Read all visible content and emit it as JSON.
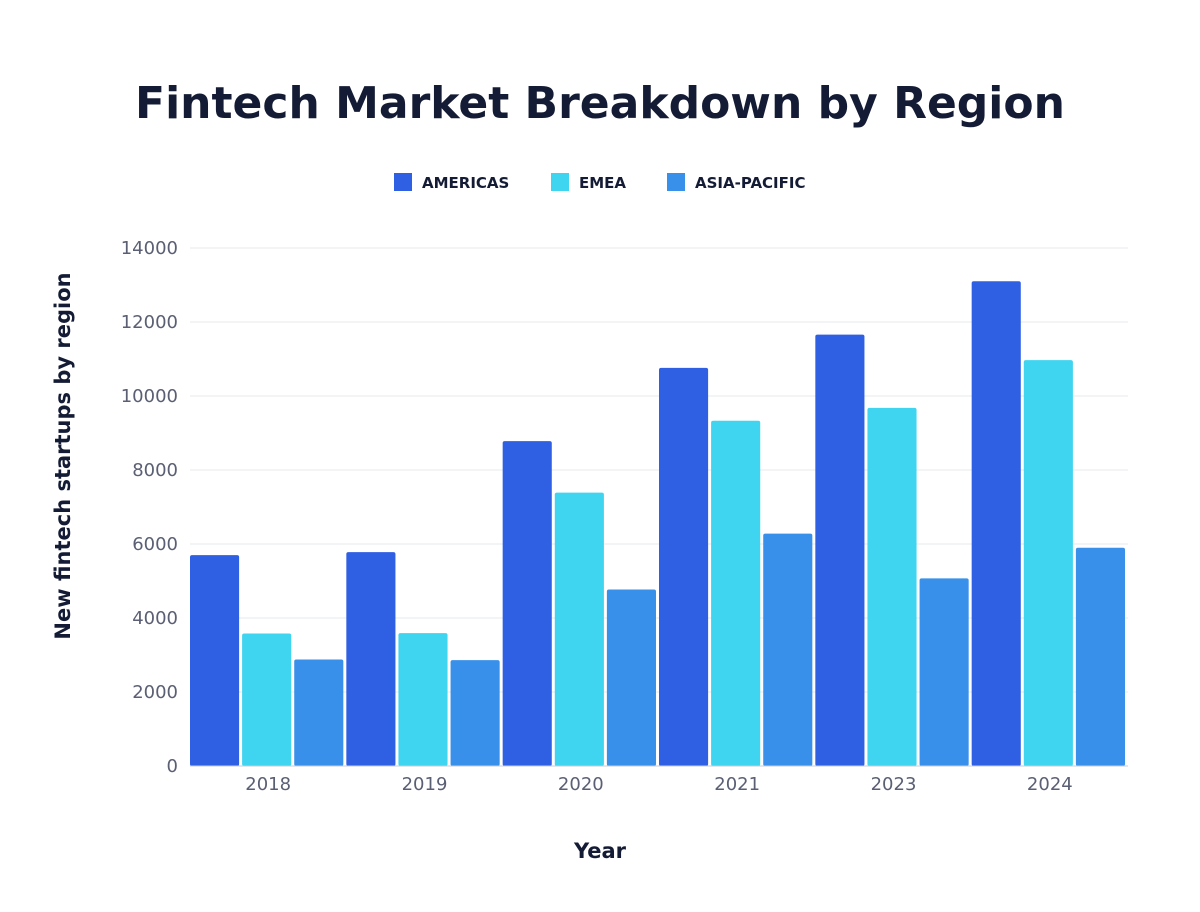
{
  "chart_data": {
    "type": "bar",
    "title": "Fintech Market Breakdown by Region",
    "xlabel": "Year",
    "ylabel": "New fintech startups by region",
    "categories": [
      "2018",
      "2019",
      "2020",
      "2021",
      "2023",
      "2024"
    ],
    "ylim": [
      0,
      14000
    ],
    "yticks": [
      0,
      2000,
      4000,
      6000,
      8000,
      10000,
      12000,
      14000
    ],
    "grid": true,
    "legend_position": "top-center",
    "series": [
      {
        "name": "AMERICAS",
        "color": "#2f5fe3",
        "values": [
          5700,
          5780,
          8780,
          10760,
          11660,
          13100
        ]
      },
      {
        "name": "EMEA",
        "color": "#3fd4f0",
        "values": [
          3580,
          3590,
          7390,
          9330,
          9680,
          10970
        ]
      },
      {
        "name": "ASIA-PACIFIC",
        "color": "#3890ea",
        "values": [
          2880,
          2860,
          4770,
          6280,
          5070,
          5900
        ]
      }
    ]
  }
}
